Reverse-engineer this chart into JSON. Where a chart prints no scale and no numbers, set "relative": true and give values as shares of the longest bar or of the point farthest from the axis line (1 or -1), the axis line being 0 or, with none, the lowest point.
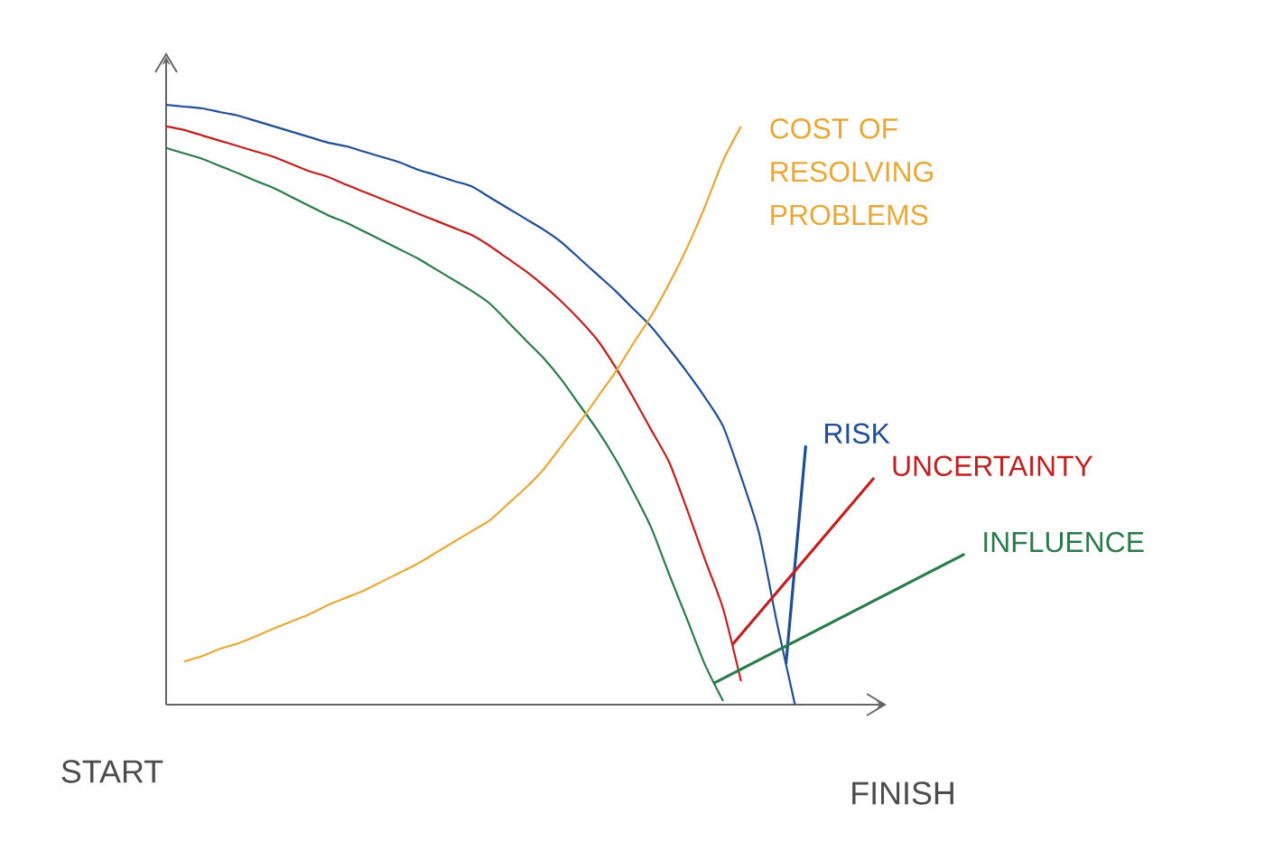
{
  "chart_data": {
    "type": "line",
    "relative": true,
    "legend": false,
    "marker": "none",
    "line_style": "solid",
    "categories": [
      null,
      null,
      null,
      null,
      null,
      null,
      null,
      null,
      null,
      null,
      null,
      null,
      null,
      null,
      null,
      null,
      null,
      null,
      null,
      null,
      null,
      null,
      null,
      null,
      null,
      null,
      null,
      null,
      null,
      null,
      null,
      null,
      null,
      null,
      null,
      null
    ],
    "series": [
      {
        "name": "RISK",
        "color": "#1f4e96",
        "values": [
          1.0,
          0.997,
          0.994,
          0.988,
          0.982,
          0.973,
          0.964,
          0.955,
          0.946,
          0.937,
          0.931,
          0.922,
          0.913,
          0.904,
          0.892,
          0.883,
          0.873,
          0.864,
          0.846,
          0.828,
          0.81,
          0.792,
          0.771,
          0.744,
          0.717,
          0.69,
          0.66,
          0.63,
          0.593,
          0.554,
          0.512,
          0.464,
          0.38,
          0.286,
          0.136,
          0
        ]
      },
      {
        "name": "UNCERTAINTY",
        "color": "#c0201e",
        "values": [
          0.964,
          0.958,
          0.949,
          0.94,
          0.931,
          0.922,
          0.913,
          0.901,
          0.889,
          0.88,
          0.867,
          0.855,
          0.843,
          0.831,
          0.819,
          0.807,
          0.795,
          0.783,
          0.765,
          0.744,
          0.723,
          0.699,
          0.672,
          0.642,
          0.608,
          0.563,
          0.512,
          0.458,
          0.404,
          0.325,
          0.241,
          0.16,
          0.039,
          null,
          null,
          null
        ]
      },
      {
        "name": "INFLUENCE",
        "color": "#2a7a4a",
        "values": [
          0.928,
          0.919,
          0.91,
          0.898,
          0.886,
          0.873,
          0.861,
          0.846,
          0.831,
          0.816,
          0.804,
          0.789,
          0.774,
          0.759,
          0.744,
          0.726,
          0.708,
          0.69,
          0.669,
          0.639,
          0.608,
          0.578,
          0.542,
          0.5,
          0.458,
          0.41,
          0.355,
          0.295,
          0.217,
          0.142,
          0.066,
          0.006,
          null,
          null,
          null,
          null
        ]
      },
      {
        "name": "COST OF RESOLVING PROBLEMS",
        "color": "#e8a838",
        "values": [
          null,
          0.072,
          0.081,
          0.093,
          0.102,
          0.114,
          0.127,
          0.139,
          0.151,
          0.166,
          0.178,
          0.19,
          0.205,
          0.22,
          0.235,
          0.253,
          0.271,
          0.289,
          0.307,
          0.334,
          0.361,
          0.392,
          0.431,
          0.47,
          0.512,
          0.554,
          0.602,
          0.648,
          0.702,
          0.762,
          0.831,
          0.907,
          0.964,
          null,
          null,
          null
        ]
      }
    ],
    "annotations": [
      "START",
      "FINISH"
    ]
  }
}
